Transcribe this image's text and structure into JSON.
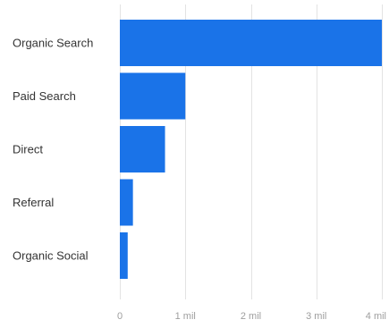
{
  "chart_data": {
    "type": "bar",
    "orientation": "horizontal",
    "categories": [
      "Organic Search",
      "Paid Search",
      "Direct",
      "Referral",
      "Organic Social"
    ],
    "values": [
      4000000,
      1000000,
      690000,
      200000,
      120000
    ],
    "xlim": [
      0,
      4000000
    ],
    "xticks": [
      {
        "value": 0,
        "label": "0"
      },
      {
        "value": 1000000,
        "label": "1 mil"
      },
      {
        "value": 2000000,
        "label": "2 mil"
      },
      {
        "value": 3000000,
        "label": "3 mil"
      },
      {
        "value": 4000000,
        "label": "4 mil"
      }
    ],
    "grid": true,
    "bar_color": "#1a73e8",
    "grid_color": "#e3e3e3",
    "label_color": "#333333",
    "tick_color": "#9e9e9e"
  }
}
